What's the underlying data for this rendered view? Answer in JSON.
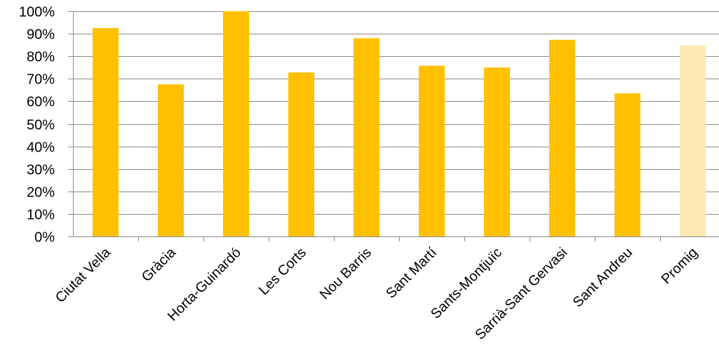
{
  "chart_data": {
    "type": "bar",
    "title": "",
    "xlabel": "",
    "ylabel": "",
    "categories": [
      "Ciutat Vella",
      "Gràcia",
      "Horta-Guinardó",
      "Les Corts",
      "Nou Barris",
      "Sant Martí",
      "Sants-Montjuïc",
      "Sarrià-Sant Gervasi",
      "Sant Andreu",
      "Promig"
    ],
    "values": [
      92.5,
      67.5,
      100,
      72.8,
      88,
      75.8,
      75,
      87.3,
      63.5,
      84.8
    ],
    "ylim": [
      0,
      100
    ],
    "yticks": [
      "0%",
      "10%",
      "20%",
      "30%",
      "40%",
      "50%",
      "60%",
      "70%",
      "80%",
      "90%",
      "100%"
    ],
    "grid": true,
    "legend": "none",
    "colors": {
      "bar": "#FFC000",
      "highlight_bar": "#FFE8B3",
      "highlight_category": "Promig"
    }
  }
}
